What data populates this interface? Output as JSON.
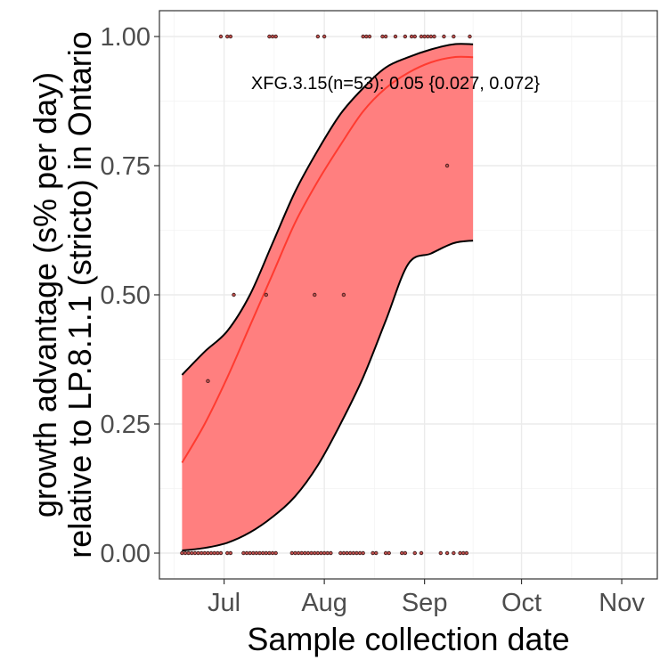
{
  "chart_data": {
    "type": "line",
    "title": "",
    "xlabel": "Sample collection date",
    "ylabel_line1": "growth advantage (s% per day)",
    "ylabel_line2": "relative to LP.8.1.1 (stricto) in Ontario",
    "x_domain": [
      "2025-06-11",
      "2025-11-12"
    ],
    "ylim": [
      -0.05,
      1.05
    ],
    "x_ticks": [
      {
        "date": "2025-07-01",
        "label": "Jul"
      },
      {
        "date": "2025-08-01",
        "label": "Aug"
      },
      {
        "date": "2025-09-01",
        "label": "Sep"
      },
      {
        "date": "2025-10-01",
        "label": "Oct"
      },
      {
        "date": "2025-11-01",
        "label": "Nov"
      }
    ],
    "y_ticks": [
      {
        "value": 0.0,
        "label": "0.00"
      },
      {
        "value": 0.25,
        "label": "0.25"
      },
      {
        "value": 0.5,
        "label": "0.50"
      },
      {
        "value": 0.75,
        "label": "0.75"
      },
      {
        "value": 1.0,
        "label": "1.00"
      }
    ],
    "grid": true,
    "annotation": {
      "text": "XFG.3.15(n=53): 0.05 {0.027, 0.072}",
      "date": "2025-08-23",
      "y": 0.91
    },
    "fit": {
      "name": "XFG.3.15",
      "color": "#ff3b30",
      "ribbon_color": "#ff7f7f",
      "x": [
        "2025-06-18",
        "2025-06-25",
        "2025-07-02",
        "2025-07-09",
        "2025-07-16",
        "2025-07-23",
        "2025-07-30",
        "2025-08-06",
        "2025-08-13",
        "2025-08-20",
        "2025-08-27",
        "2025-09-03",
        "2025-09-10",
        "2025-09-16"
      ],
      "y": [
        0.175,
        0.25,
        0.34,
        0.44,
        0.54,
        0.64,
        0.72,
        0.79,
        0.855,
        0.9,
        0.93,
        0.95,
        0.96,
        0.96
      ],
      "upper": [
        0.345,
        0.39,
        0.43,
        0.5,
        0.6,
        0.7,
        0.78,
        0.85,
        0.9,
        0.94,
        0.96,
        0.975,
        0.985,
        0.985
      ],
      "lower": [
        0.005,
        0.01,
        0.02,
        0.04,
        0.07,
        0.11,
        0.17,
        0.25,
        0.34,
        0.45,
        0.56,
        0.58,
        0.6,
        0.605
      ]
    },
    "points": [
      {
        "date": "2025-06-18",
        "y": 0
      },
      {
        "date": "2025-06-19",
        "y": 0
      },
      {
        "date": "2025-06-20",
        "y": 0
      },
      {
        "date": "2025-06-21",
        "y": 0
      },
      {
        "date": "2025-06-22",
        "y": 0
      },
      {
        "date": "2025-06-23",
        "y": 0
      },
      {
        "date": "2025-06-24",
        "y": 0
      },
      {
        "date": "2025-06-25",
        "y": 0
      },
      {
        "date": "2025-06-26",
        "y": 0
      },
      {
        "date": "2025-06-27",
        "y": 0
      },
      {
        "date": "2025-06-28",
        "y": 0
      },
      {
        "date": "2025-06-29",
        "y": 0
      },
      {
        "date": "2025-06-30",
        "y": 0
      },
      {
        "date": "2025-07-02",
        "y": 0
      },
      {
        "date": "2025-07-03",
        "y": 0
      },
      {
        "date": "2025-07-07",
        "y": 0
      },
      {
        "date": "2025-07-08",
        "y": 0
      },
      {
        "date": "2025-07-09",
        "y": 0
      },
      {
        "date": "2025-07-10",
        "y": 0
      },
      {
        "date": "2025-07-11",
        "y": 0
      },
      {
        "date": "2025-07-12",
        "y": 0
      },
      {
        "date": "2025-07-13",
        "y": 0
      },
      {
        "date": "2025-07-14",
        "y": 0
      },
      {
        "date": "2025-07-15",
        "y": 0
      },
      {
        "date": "2025-07-16",
        "y": 0
      },
      {
        "date": "2025-07-17",
        "y": 0
      },
      {
        "date": "2025-07-22",
        "y": 0
      },
      {
        "date": "2025-07-23",
        "y": 0
      },
      {
        "date": "2025-07-24",
        "y": 0
      },
      {
        "date": "2025-07-25",
        "y": 0
      },
      {
        "date": "2025-07-26",
        "y": 0
      },
      {
        "date": "2025-07-27",
        "y": 0
      },
      {
        "date": "2025-07-28",
        "y": 0
      },
      {
        "date": "2025-07-29",
        "y": 0
      },
      {
        "date": "2025-07-30",
        "y": 0
      },
      {
        "date": "2025-07-31",
        "y": 0
      },
      {
        "date": "2025-08-01",
        "y": 0
      },
      {
        "date": "2025-08-02",
        "y": 0
      },
      {
        "date": "2025-08-03",
        "y": 0
      },
      {
        "date": "2025-08-06",
        "y": 0
      },
      {
        "date": "2025-08-07",
        "y": 0
      },
      {
        "date": "2025-08-08",
        "y": 0
      },
      {
        "date": "2025-08-09",
        "y": 0
      },
      {
        "date": "2025-08-10",
        "y": 0
      },
      {
        "date": "2025-08-11",
        "y": 0
      },
      {
        "date": "2025-08-12",
        "y": 0
      },
      {
        "date": "2025-08-13",
        "y": 0
      },
      {
        "date": "2025-08-16",
        "y": 0
      },
      {
        "date": "2025-08-17",
        "y": 0
      },
      {
        "date": "2025-08-20",
        "y": 0
      },
      {
        "date": "2025-08-21",
        "y": 0
      },
      {
        "date": "2025-08-25",
        "y": 0
      },
      {
        "date": "2025-08-26",
        "y": 0
      },
      {
        "date": "2025-08-29",
        "y": 0
      },
      {
        "date": "2025-08-31",
        "y": 0
      },
      {
        "date": "2025-09-06",
        "y": 0
      },
      {
        "date": "2025-09-08",
        "y": 0
      },
      {
        "date": "2025-09-10",
        "y": 0
      },
      {
        "date": "2025-09-12",
        "y": 0
      },
      {
        "date": "2025-09-13",
        "y": 0
      },
      {
        "date": "2025-09-14",
        "y": 0
      },
      {
        "date": "2025-06-26",
        "y": 0.333
      },
      {
        "date": "2025-07-04",
        "y": 0.5
      },
      {
        "date": "2025-07-14",
        "y": 0.5
      },
      {
        "date": "2025-07-29",
        "y": 0.5
      },
      {
        "date": "2025-08-07",
        "y": 0.5
      },
      {
        "date": "2025-09-08",
        "y": 0.75
      },
      {
        "date": "2025-06-30",
        "y": 1
      },
      {
        "date": "2025-07-02",
        "y": 1
      },
      {
        "date": "2025-07-03",
        "y": 1
      },
      {
        "date": "2025-07-15",
        "y": 1
      },
      {
        "date": "2025-07-16",
        "y": 1
      },
      {
        "date": "2025-07-17",
        "y": 1
      },
      {
        "date": "2025-07-30",
        "y": 1
      },
      {
        "date": "2025-08-01",
        "y": 1
      },
      {
        "date": "2025-08-13",
        "y": 1
      },
      {
        "date": "2025-08-14",
        "y": 1
      },
      {
        "date": "2025-08-15",
        "y": 1
      },
      {
        "date": "2025-08-19",
        "y": 1
      },
      {
        "date": "2025-08-20",
        "y": 1
      },
      {
        "date": "2025-08-23",
        "y": 1
      },
      {
        "date": "2025-08-26",
        "y": 1
      },
      {
        "date": "2025-08-28",
        "y": 1
      },
      {
        "date": "2025-08-29",
        "y": 1
      },
      {
        "date": "2025-08-31",
        "y": 1
      },
      {
        "date": "2025-09-01",
        "y": 1
      },
      {
        "date": "2025-09-02",
        "y": 1
      },
      {
        "date": "2025-09-03",
        "y": 1
      },
      {
        "date": "2025-09-04",
        "y": 1
      },
      {
        "date": "2025-09-07",
        "y": 1
      },
      {
        "date": "2025-09-10",
        "y": 1
      },
      {
        "date": "2025-09-15",
        "y": 1
      }
    ]
  }
}
